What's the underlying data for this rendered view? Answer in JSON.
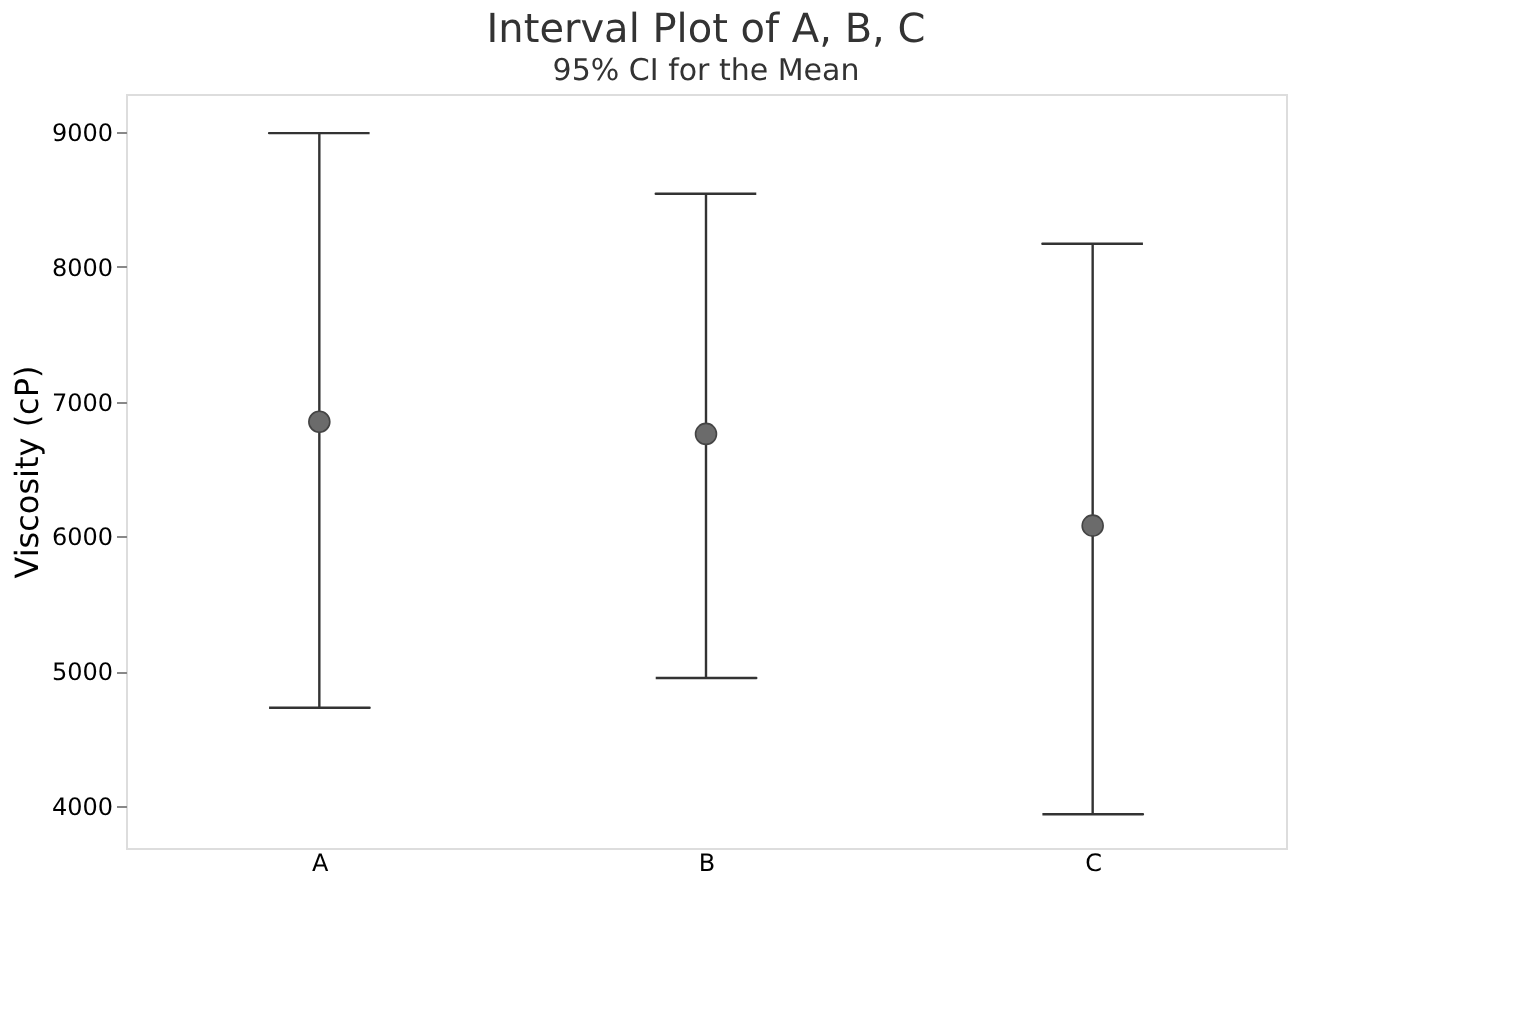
{
  "chart_data": {
    "type": "scatter",
    "title": "Interval Plot of A, B, C",
    "subtitle": "95% CI for the Mean",
    "ylabel": "Viscosity (cP)",
    "categories": [
      "A",
      "B",
      "C"
    ],
    "series": [
      {
        "color": "#6b6b6b",
        "values": [
          6850,
          6760,
          6080
        ],
        "errors": [
          [
            4730,
            8990
          ],
          [
            4950,
            8540
          ],
          [
            3940,
            8170
          ]
        ]
      }
    ],
    "ylim": [
      3690,
      9280
    ],
    "yticks": [
      4000,
      5000,
      6000,
      7000,
      8000,
      9000
    ],
    "marker": "circle",
    "grid": false
  }
}
